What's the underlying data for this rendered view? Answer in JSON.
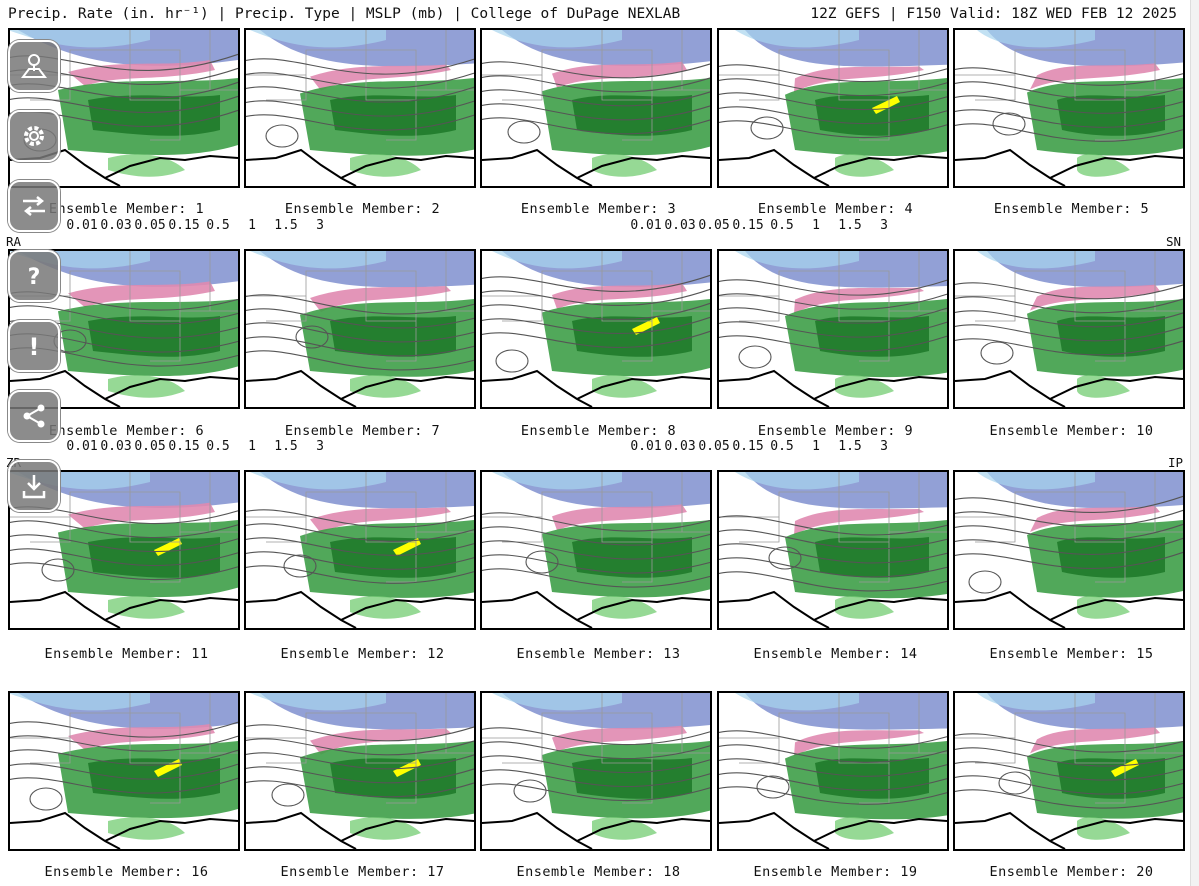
{
  "header": {
    "left": "Precip. Rate (in. hr⁻¹) | Precip. Type | MSLP (mb) | College of DuPage NEXLAB",
    "right": "12Z GEFS | F150 Valid: 18Z WED FEB 12 2025"
  },
  "members": [
    {
      "label": "Ensemble Member: 1"
    },
    {
      "label": "Ensemble Member: 2"
    },
    {
      "label": "Ensemble Member: 3"
    },
    {
      "label": "Ensemble Member: 4"
    },
    {
      "label": "Ensemble Member: 5"
    },
    {
      "label": "Ensemble Member: 6"
    },
    {
      "label": "Ensemble Member: 7"
    },
    {
      "label": "Ensemble Member: 8"
    },
    {
      "label": "Ensemble Member: 9"
    },
    {
      "label": "Ensemble Member: 10"
    },
    {
      "label": "Ensemble Member: 11"
    },
    {
      "label": "Ensemble Member: 12"
    },
    {
      "label": "Ensemble Member: 13"
    },
    {
      "label": "Ensemble Member: 14"
    },
    {
      "label": "Ensemble Member: 15"
    },
    {
      "label": "Ensemble Member: 16"
    },
    {
      "label": "Ensemble Member: 17"
    },
    {
      "label": "Ensemble Member: 18"
    },
    {
      "label": "Ensemble Member: 19"
    },
    {
      "label": "Ensemble Member: 20"
    }
  ],
  "legends": {
    "ra": {
      "code": "RA",
      "ticks": [
        "0.01",
        "0.03",
        "0.05",
        "0.15",
        "0.5",
        "1",
        "1.5",
        "3"
      ],
      "colors": [
        "#a8e0a0",
        "#82cc7a",
        "#5cb85a",
        "#3ea040",
        "#2a8a30",
        "#156f1c",
        "#ffff00",
        "#ffe000",
        "#ffc000",
        "#ffa000"
      ]
    },
    "sn": {
      "code": "SN",
      "ticks": [
        "0.01",
        "0.03",
        "0.05",
        "0.15",
        "0.5",
        "1",
        "1.5",
        "3"
      ],
      "colors": [
        "#ffffff",
        "#a8d8f0",
        "#8fc4e4",
        "#7fa8d8",
        "#7890c8",
        "#6a78b8",
        "#5a5ca8",
        "#9a40d0",
        "#b860d8",
        "#d090e0"
      ]
    },
    "zr": {
      "code": "ZR",
      "ticks": [
        "0.01",
        "0.03",
        "0.05",
        "0.15",
        "0.5",
        "1",
        "1.5",
        "3"
      ],
      "colors": [
        "#f8c8d8",
        "#f0a8c8",
        "#e890c0",
        "#d878c0",
        "#c060b8",
        "#a850b0",
        "#8c40a8",
        "#7830a0",
        "#6020a0",
        "#4a10a0"
      ]
    },
    "ip": {
      "code": "IP",
      "ticks": [
        "0.01",
        "0.03",
        "0.05",
        "0.15",
        "0.5",
        "1",
        "1.5",
        "3"
      ],
      "colors": [
        "#ffffff",
        "#f8c0c8",
        "#f0a0a8",
        "#e08890",
        "#d07078",
        "#c05860",
        "#b04048",
        "#a03038",
        "#901820",
        "#800808"
      ]
    }
  },
  "toolbar": [
    "map-icon",
    "gear-icon",
    "swap-icon",
    "help-icon",
    "alert-icon",
    "share-icon",
    "download-icon"
  ]
}
